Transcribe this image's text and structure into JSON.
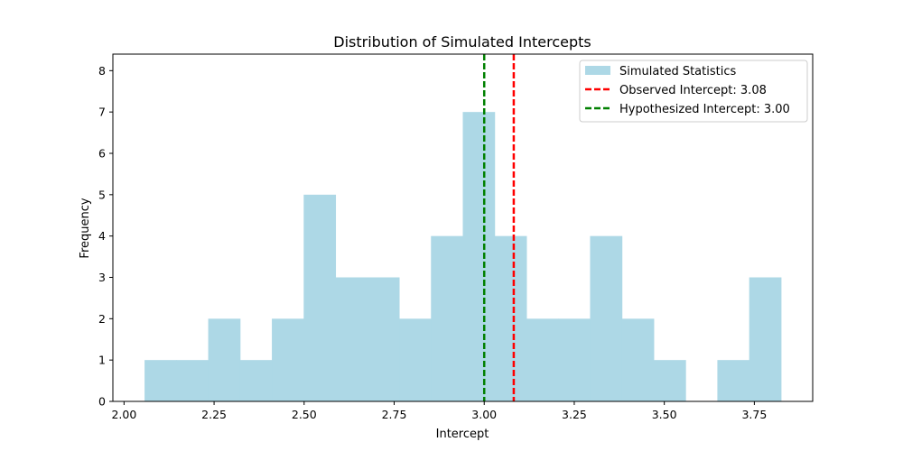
{
  "chart_data": {
    "type": "bar",
    "title": "Distribution of Simulated Intercepts",
    "xlabel": "Intercept",
    "ylabel": "Frequency",
    "xlim": [
      1.969,
      3.912
    ],
    "ylim": [
      0,
      8.4
    ],
    "xticks": [
      2.0,
      2.25,
      2.5,
      2.75,
      3.0,
      3.25,
      3.5,
      3.75
    ],
    "xtick_labels": [
      "2.00",
      "2.25",
      "2.50",
      "2.75",
      "3.00",
      "3.25",
      "3.50",
      "3.75"
    ],
    "yticks": [
      0,
      1,
      2,
      3,
      4,
      5,
      6,
      7,
      8
    ],
    "bin_start": 2.057,
    "bin_end": 3.824,
    "bin_count": 20,
    "bin_values": [
      1,
      1,
      2,
      1,
      2,
      5,
      3,
      3,
      2,
      4,
      7,
      4,
      2,
      2,
      4,
      2,
      1,
      0,
      1,
      3
    ],
    "series": [
      {
        "name": "Simulated Statistics",
        "kind": "histogram",
        "color": "#add8e6"
      }
    ],
    "reference_lines": [
      {
        "name": "Observed Intercept: 3.08",
        "x": 3.082,
        "color": "#ff0000",
        "style": "dashed"
      },
      {
        "name": "Hypothesized Intercept: 3.00",
        "x": 3.0,
        "color": "#008000",
        "style": "dashed"
      }
    ],
    "legend": {
      "placement": "top-right",
      "entries": [
        "Simulated Statistics",
        "Observed Intercept: 3.08",
        "Hypothesized Intercept: 3.00"
      ]
    },
    "grid": false
  }
}
